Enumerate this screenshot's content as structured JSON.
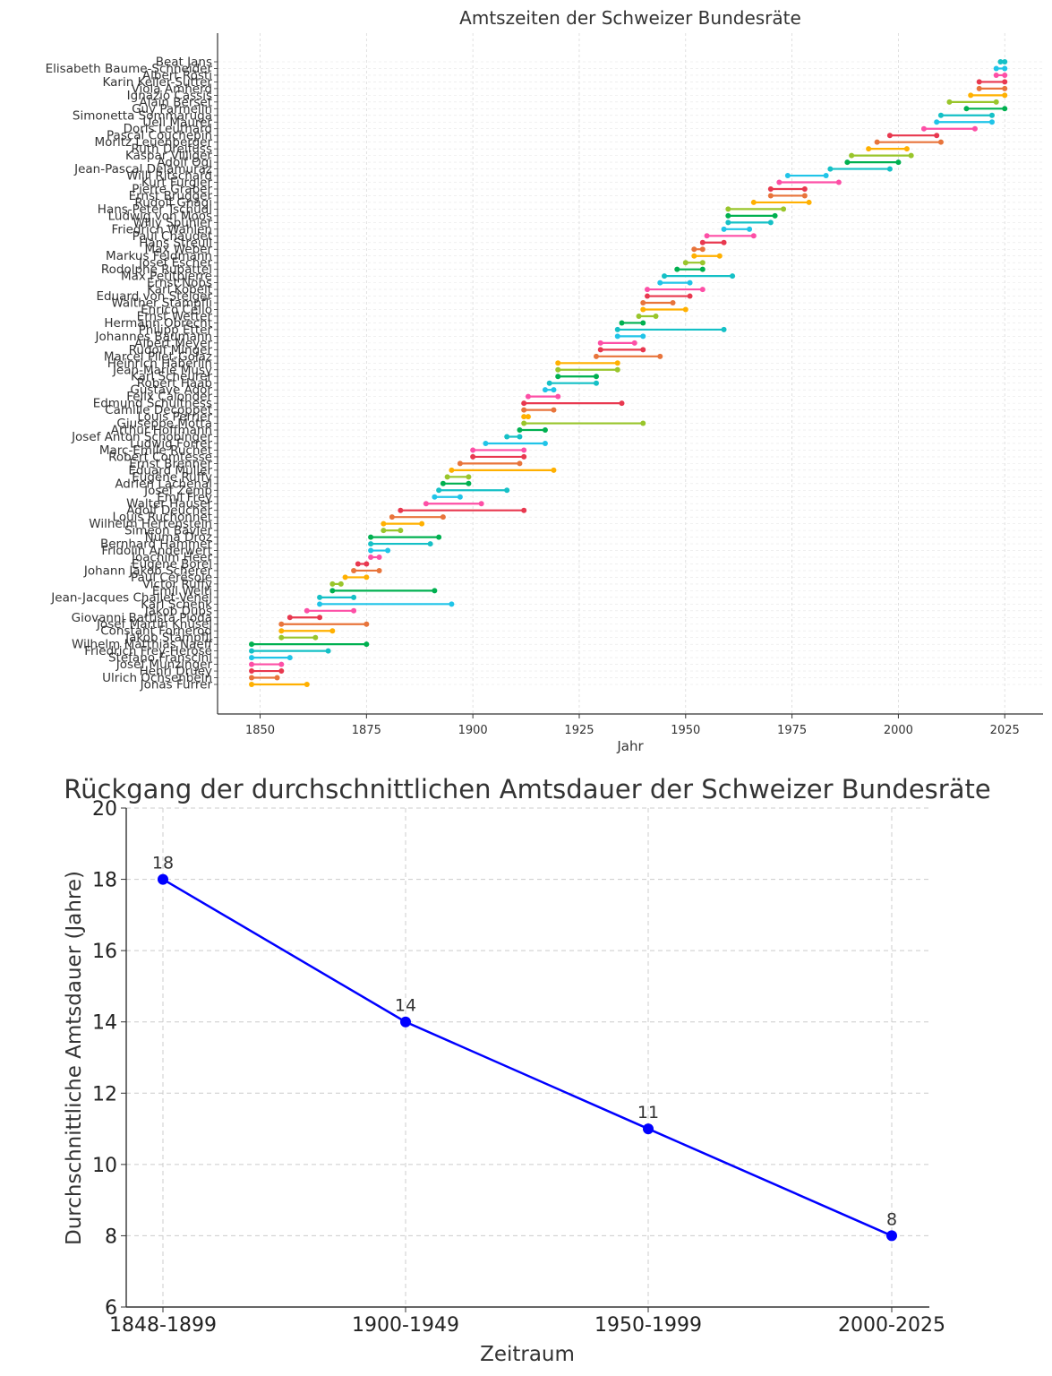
{
  "chart_data": [
    {
      "type": "dumbbell",
      "title": "Amtszeiten der Schweizer Bundesräte",
      "xlabel": "Jahr",
      "ylabel": "",
      "xlim": [
        1840,
        2034
      ],
      "xticks": [
        1850,
        1875,
        1900,
        1925,
        1950,
        1975,
        2000,
        2025
      ],
      "grid": true,
      "palette": [
        "#ffb000",
        "#e8743b",
        "#e8384f",
        "#fd4fa6",
        "#20c4e8",
        "#15c0c6",
        "#00b050",
        "#99c52b"
      ],
      "members": [
        {
          "name": "Jonas Furrer",
          "start": 1848,
          "end": 1861
        },
        {
          "name": "Ulrich Ochsenbein",
          "start": 1848,
          "end": 1854
        },
        {
          "name": "Henri Druey",
          "start": 1848,
          "end": 1855
        },
        {
          "name": "Josef Munzinger",
          "start": 1848,
          "end": 1855
        },
        {
          "name": "Stefano Franscini",
          "start": 1848,
          "end": 1857
        },
        {
          "name": "Friedrich Frey-Herosé",
          "start": 1848,
          "end": 1866
        },
        {
          "name": "Wilhelm Matthias Naeff",
          "start": 1848,
          "end": 1875
        },
        {
          "name": "Jakob Stämpfli",
          "start": 1855,
          "end": 1863
        },
        {
          "name": "Constant Fornerod",
          "start": 1855,
          "end": 1867
        },
        {
          "name": "Josef Martin Knüsel",
          "start": 1855,
          "end": 1875
        },
        {
          "name": "Giovanni Battista Pioda",
          "start": 1857,
          "end": 1864
        },
        {
          "name": "Jakob Dubs",
          "start": 1861,
          "end": 1872
        },
        {
          "name": "Karl Schenk",
          "start": 1864,
          "end": 1895
        },
        {
          "name": "Jean-Jacques Challet-Venel",
          "start": 1864,
          "end": 1872
        },
        {
          "name": "Emil Welti",
          "start": 1867,
          "end": 1891
        },
        {
          "name": "Victor Ruffy",
          "start": 1867,
          "end": 1869
        },
        {
          "name": "Paul Cérésole",
          "start": 1870,
          "end": 1875
        },
        {
          "name": "Johann Jakob Scherer",
          "start": 1872,
          "end": 1878
        },
        {
          "name": "Eugène Borel",
          "start": 1873,
          "end": 1875
        },
        {
          "name": "Joachim Heer",
          "start": 1876,
          "end": 1878
        },
        {
          "name": "Fridolin Anderwert",
          "start": 1876,
          "end": 1880
        },
        {
          "name": "Bernhard Hammer",
          "start": 1876,
          "end": 1890
        },
        {
          "name": "Numa Droz",
          "start": 1876,
          "end": 1892
        },
        {
          "name": "Simeon Bavier",
          "start": 1879,
          "end": 1883
        },
        {
          "name": "Wilhelm Hertenstein",
          "start": 1879,
          "end": 1888
        },
        {
          "name": "Louis Ruchonnet",
          "start": 1881,
          "end": 1893
        },
        {
          "name": "Adolf Deucher",
          "start": 1883,
          "end": 1912
        },
        {
          "name": "Walter Hauser",
          "start": 1889,
          "end": 1902
        },
        {
          "name": "Emil Frey",
          "start": 1891,
          "end": 1897
        },
        {
          "name": "Josef Zemp",
          "start": 1892,
          "end": 1908
        },
        {
          "name": "Adrien Lachenal",
          "start": 1893,
          "end": 1899
        },
        {
          "name": "Eugène Ruffy",
          "start": 1894,
          "end": 1899
        },
        {
          "name": "Eduard Müller",
          "start": 1895,
          "end": 1919
        },
        {
          "name": "Ernst Brenner",
          "start": 1897,
          "end": 1911
        },
        {
          "name": "Robert Comtesse",
          "start": 1900,
          "end": 1912
        },
        {
          "name": "Marc-Emile Ruchet",
          "start": 1900,
          "end": 1912
        },
        {
          "name": "Ludwig Forrer",
          "start": 1903,
          "end": 1917
        },
        {
          "name": "Josef Anton Schobinger",
          "start": 1908,
          "end": 1911
        },
        {
          "name": "Arthur Hoffmann",
          "start": 1911,
          "end": 1917
        },
        {
          "name": "Giuseppe Motta",
          "start": 1912,
          "end": 1940
        },
        {
          "name": "Louis Perrier",
          "start": 1912,
          "end": 1913
        },
        {
          "name": "Camille Decoppet",
          "start": 1912,
          "end": 1919
        },
        {
          "name": "Edmund Schulthess",
          "start": 1912,
          "end": 1935
        },
        {
          "name": "Felix Calonder",
          "start": 1913,
          "end": 1920
        },
        {
          "name": "Gustave Ador",
          "start": 1917,
          "end": 1919
        },
        {
          "name": "Robert Haab",
          "start": 1918,
          "end": 1929
        },
        {
          "name": "Karl Scheurer",
          "start": 1920,
          "end": 1929
        },
        {
          "name": "Jean-Marie Musy",
          "start": 1920,
          "end": 1934
        },
        {
          "name": "Heinrich Häberlin",
          "start": 1920,
          "end": 1934
        },
        {
          "name": "Marcel Pilet-Golaz",
          "start": 1929,
          "end": 1944
        },
        {
          "name": "Rudolf Minger",
          "start": 1930,
          "end": 1940
        },
        {
          "name": "Albert Meyer",
          "start": 1930,
          "end": 1938
        },
        {
          "name": "Johannes Baumann",
          "start": 1934,
          "end": 1940
        },
        {
          "name": "Philipp Etter",
          "start": 1934,
          "end": 1959
        },
        {
          "name": "Hermann Obrecht",
          "start": 1935,
          "end": 1940
        },
        {
          "name": "Ernst Wetter",
          "start": 1939,
          "end": 1943
        },
        {
          "name": "Enrico Celio",
          "start": 1940,
          "end": 1950
        },
        {
          "name": "Walther Stampfli",
          "start": 1940,
          "end": 1947
        },
        {
          "name": "Eduard von Steiger",
          "start": 1941,
          "end": 1951
        },
        {
          "name": "Karl Kobelt",
          "start": 1941,
          "end": 1954
        },
        {
          "name": "Ernst Nobs",
          "start": 1944,
          "end": 1951
        },
        {
          "name": "Max Petitpierre",
          "start": 1945,
          "end": 1961
        },
        {
          "name": "Rodolphe Rubattel",
          "start": 1948,
          "end": 1954
        },
        {
          "name": "Josef Escher",
          "start": 1950,
          "end": 1954
        },
        {
          "name": "Markus Feldmann",
          "start": 1952,
          "end": 1958
        },
        {
          "name": "Max Weber",
          "start": 1952,
          "end": 1954
        },
        {
          "name": "Hans Streuli",
          "start": 1954,
          "end": 1959
        },
        {
          "name": "Paul Chaudet",
          "start": 1955,
          "end": 1966
        },
        {
          "name": "Friedrich Wahlen",
          "start": 1959,
          "end": 1965
        },
        {
          "name": "Willy Spühler",
          "start": 1960,
          "end": 1970
        },
        {
          "name": "Ludwig von Moos",
          "start": 1960,
          "end": 1971
        },
        {
          "name": "Hans-Peter Tschudi",
          "start": 1960,
          "end": 1973
        },
        {
          "name": "Rudolf Gnägi",
          "start": 1966,
          "end": 1979
        },
        {
          "name": "Ernst Brugger",
          "start": 1970,
          "end": 1978
        },
        {
          "name": "Pierre Graber",
          "start": 1970,
          "end": 1978
        },
        {
          "name": "Kurt Furgler",
          "start": 1972,
          "end": 1986
        },
        {
          "name": "Willi Ritschard",
          "start": 1974,
          "end": 1983
        },
        {
          "name": "Jean-Pascal Delamuraz",
          "start": 1984,
          "end": 1998
        },
        {
          "name": "Adolf Ogi",
          "start": 1988,
          "end": 2000
        },
        {
          "name": "Kaspar Villiger",
          "start": 1989,
          "end": 2003
        },
        {
          "name": "Ruth Dreifuss",
          "start": 1993,
          "end": 2002
        },
        {
          "name": "Moritz Leuenberger",
          "start": 1995,
          "end": 2010
        },
        {
          "name": "Pascal Couchepin",
          "start": 1998,
          "end": 2009
        },
        {
          "name": "Doris Leuthard",
          "start": 2006,
          "end": 2018
        },
        {
          "name": "Ueli Maurer",
          "start": 2009,
          "end": 2022
        },
        {
          "name": "Simonetta Sommaruga",
          "start": 2010,
          "end": 2022
        },
        {
          "name": "Guy Parmelin",
          "start": 2016,
          "end": 2025
        },
        {
          "name": "Alain Berset",
          "start": 2012,
          "end": 2023
        },
        {
          "name": "Ignazio Cassis",
          "start": 2017,
          "end": 2025
        },
        {
          "name": "Viola Amherd",
          "start": 2019,
          "end": 2025
        },
        {
          "name": "Karin Keller-Sutter",
          "start": 2019,
          "end": 2025
        },
        {
          "name": "Albert Rösti",
          "start": 2023,
          "end": 2025
        },
        {
          "name": "Elisabeth Baume-Schneider",
          "start": 2023,
          "end": 2025
        },
        {
          "name": "Beat Jans",
          "start": 2024,
          "end": 2025
        }
      ]
    },
    {
      "type": "line",
      "title": "Rückgang der durchschnittlichen Amtsdauer der Schweizer Bundesräte",
      "xlabel": "Zeitraum",
      "ylabel": "Durchschnittliche Amtsdauer (Jahre)",
      "categories": [
        "1848-1899",
        "1900-1949",
        "1950-1999",
        "2000-2025"
      ],
      "values": [
        18,
        14,
        11,
        8
      ],
      "data_labels": [
        "18",
        "14",
        "11",
        "8"
      ],
      "ylim": [
        6,
        20
      ],
      "yticks": [
        6,
        8,
        10,
        12,
        14,
        16,
        18,
        20
      ],
      "grid": true,
      "color": "#0000ff"
    }
  ]
}
